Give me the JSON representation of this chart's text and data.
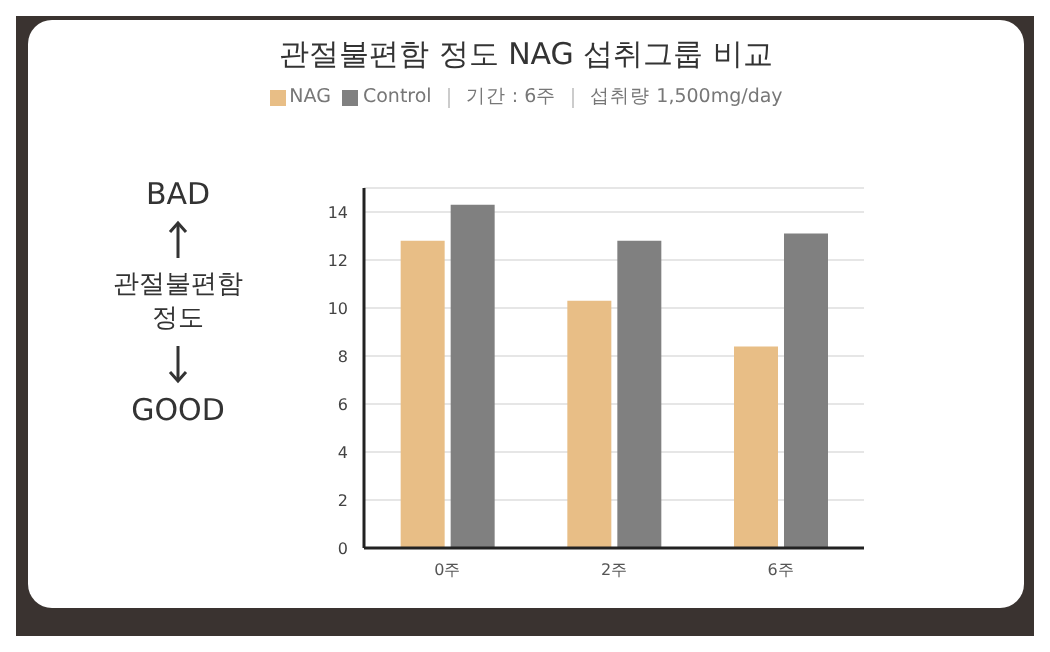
{
  "chart_data": {
    "type": "bar",
    "title": "관절불편함 정도 NAG 섭취그룹 비교",
    "ylabel": "관절불편함 정도",
    "annotations": [
      "BAD",
      "GOOD",
      "기간 : 6주",
      "섭취량 1,500mg/day"
    ],
    "categories": [
      "0주",
      "2주",
      "6주"
    ],
    "series": [
      {
        "name": "NAG",
        "color": "#e8be86",
        "values": [
          12.8,
          10.3,
          8.4
        ]
      },
      {
        "name": "Control",
        "color": "#808080",
        "values": [
          14.3,
          12.8,
          13.1
        ]
      }
    ],
    "ylim": [
      0,
      15
    ],
    "yticks": [
      0,
      2,
      4,
      6,
      8,
      10,
      12,
      14
    ],
    "grid": "y",
    "legend": "top"
  }
}
